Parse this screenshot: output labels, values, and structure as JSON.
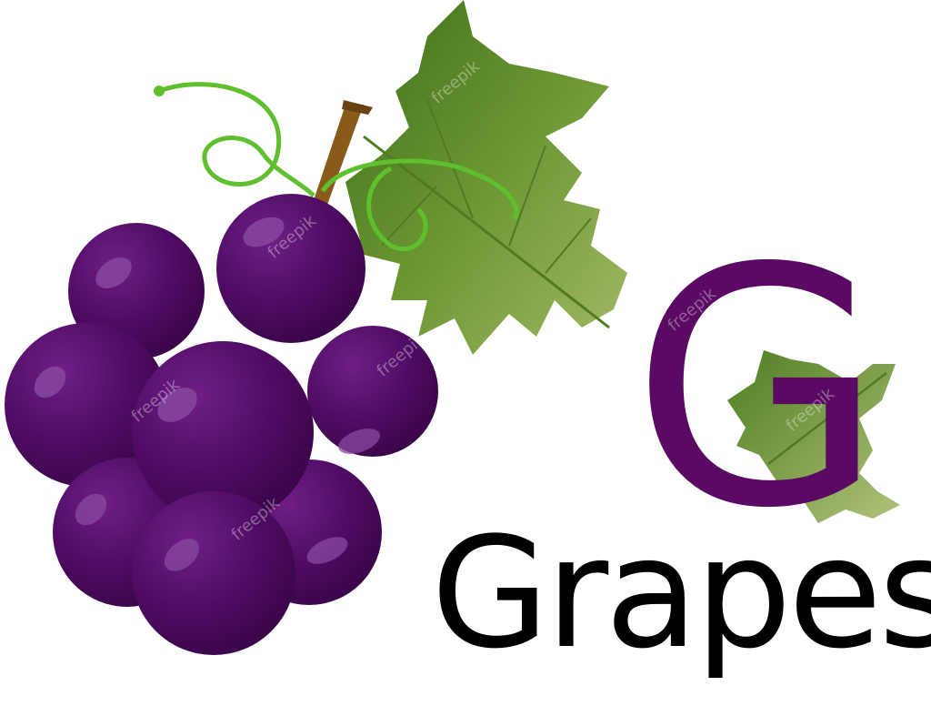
{
  "letter": "G",
  "word": "Grapes",
  "watermark": "freepik",
  "colors": {
    "grape": "#4d0a5e",
    "grape_highlight": "#7a3a92",
    "leaf": "#5e8a2a",
    "leaf_light": "#8db54b",
    "tendril": "#5fbf2e",
    "stem": "#8a5a1a",
    "letter": "#5a0a63",
    "word": "#000000"
  },
  "icons": [
    "grape-bunch-illustration",
    "grape-leaf-illustration",
    "tendril-illustration"
  ]
}
